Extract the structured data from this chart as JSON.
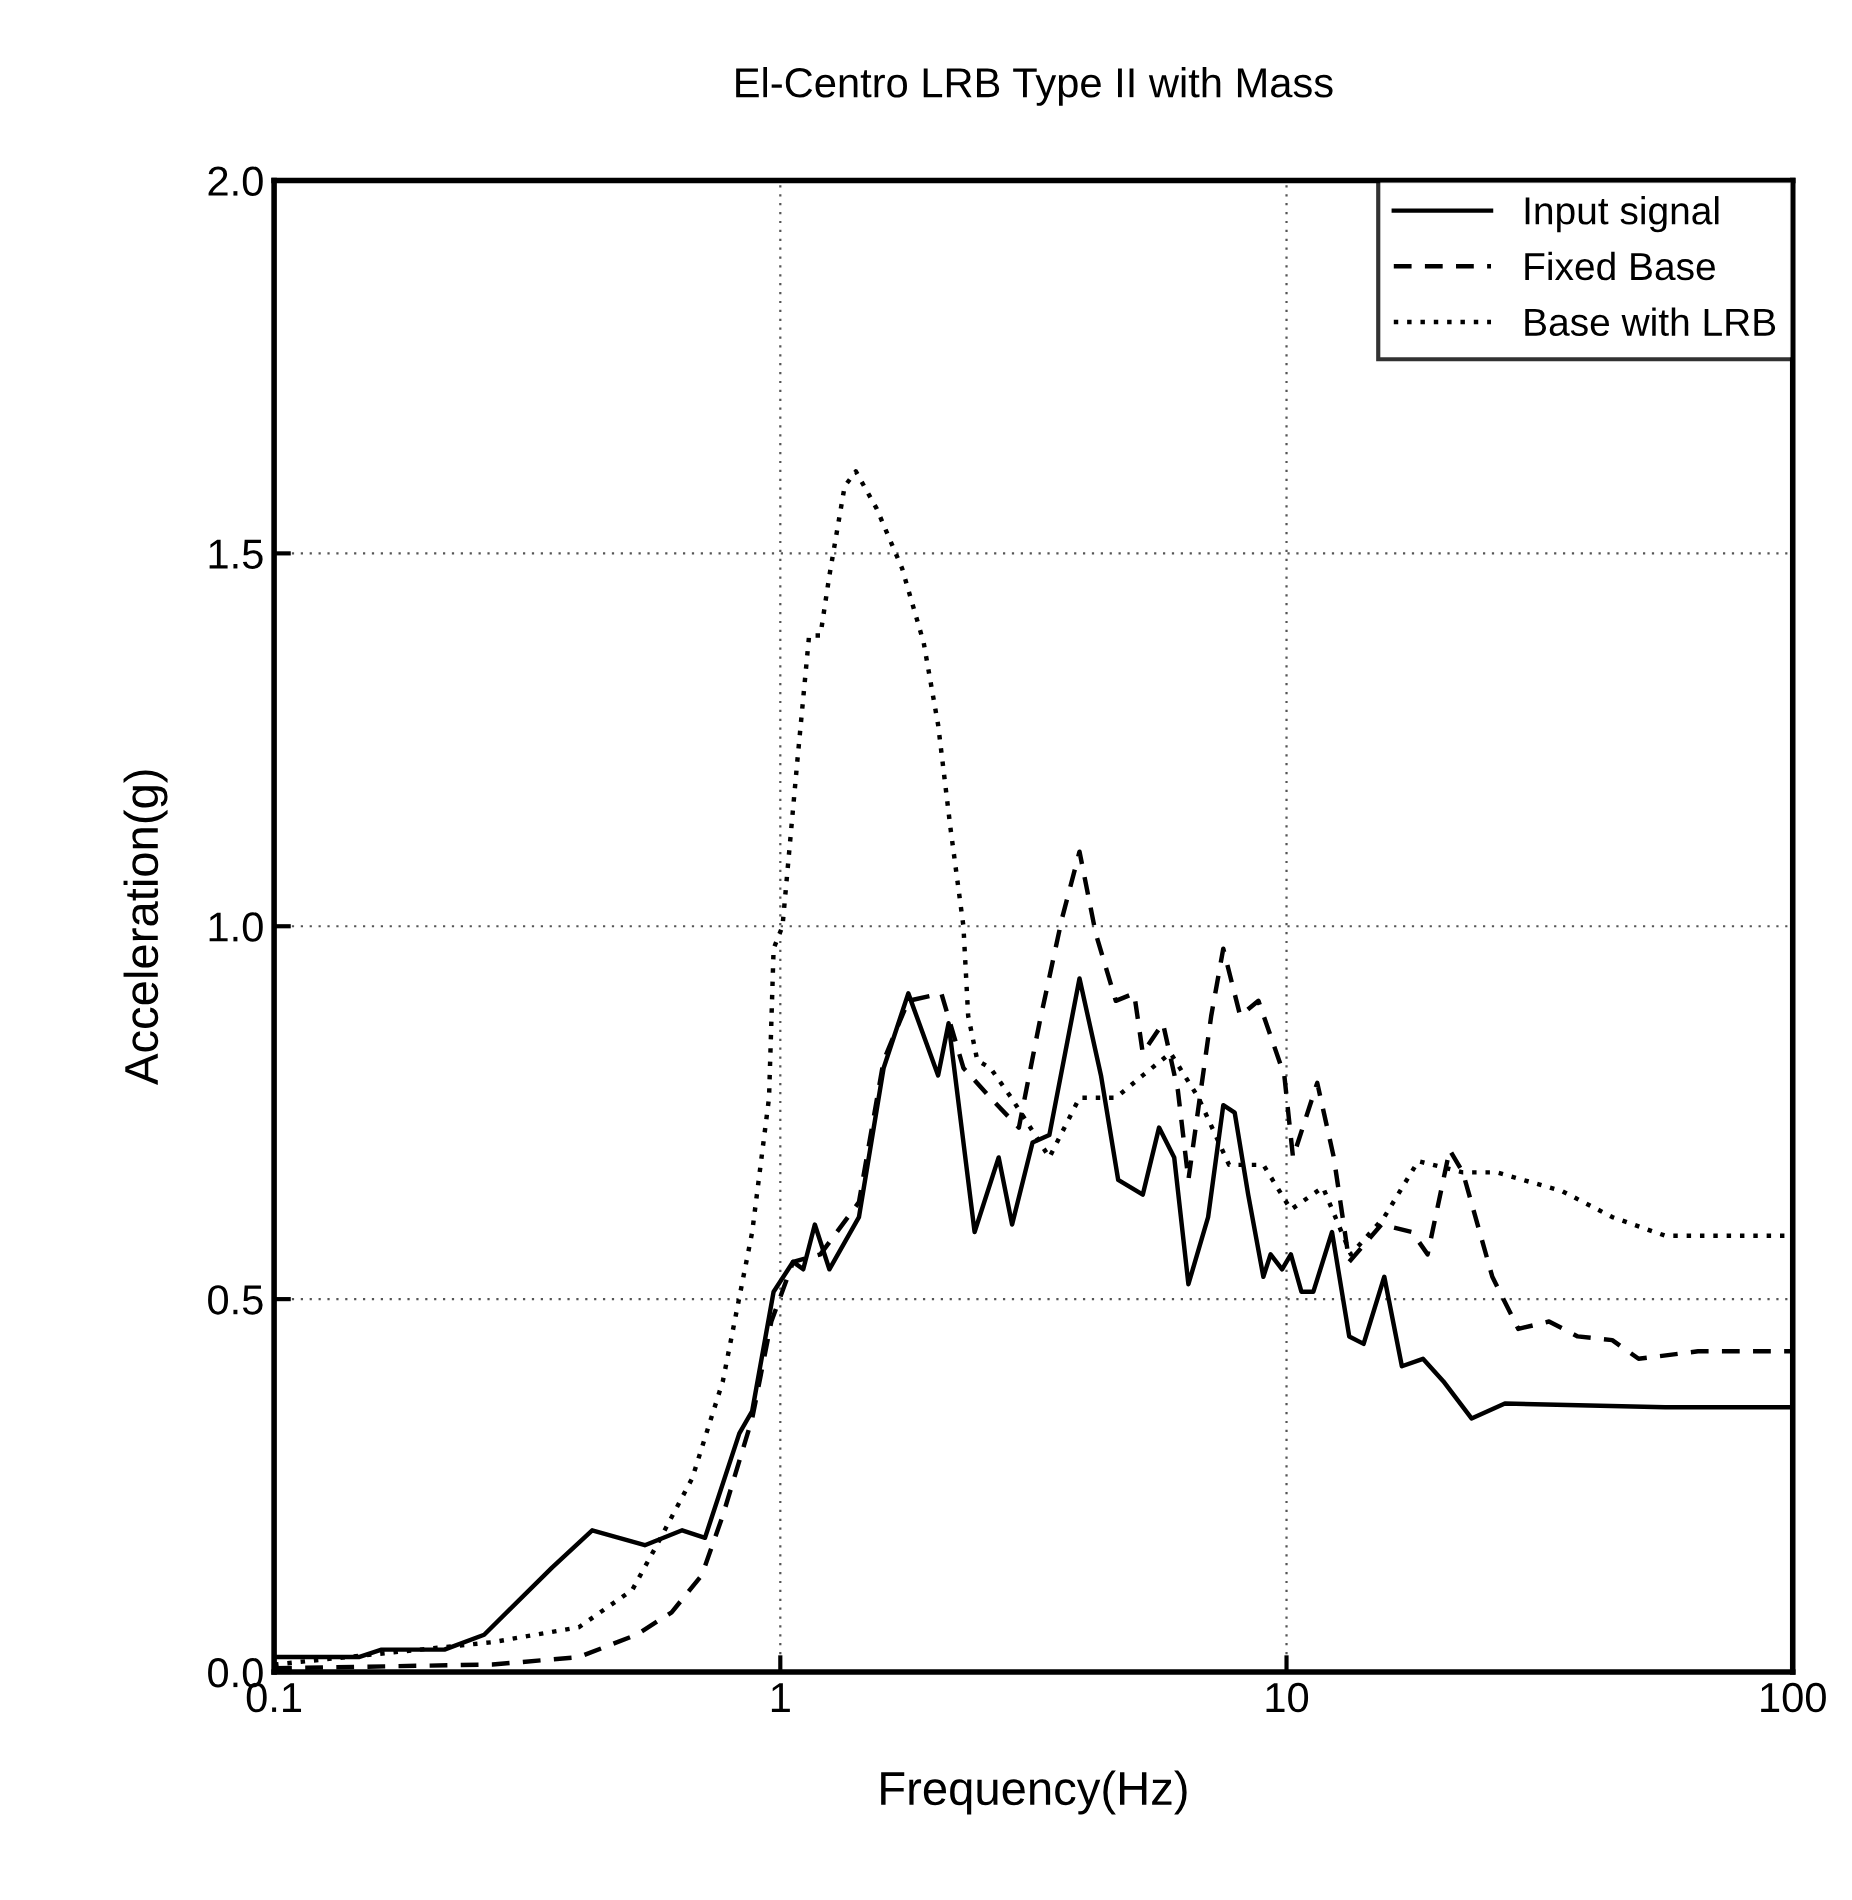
{
  "chart_data": {
    "type": "line",
    "title": "El-Centro LRB Type II with Mass",
    "xlabel": "Frequency(Hz)",
    "ylabel": "Acceleration(g)",
    "log": "x",
    "xlim": [
      0.1,
      100
    ],
    "ylim": [
      0,
      2
    ],
    "xticks": [
      {
        "value": 0.1,
        "label": "0.1"
      },
      {
        "value": 1,
        "label": "1"
      },
      {
        "value": 10,
        "label": "10"
      },
      {
        "value": 100,
        "label": "100"
      }
    ],
    "yticks": [
      {
        "value": 0,
        "label": "0.0"
      },
      {
        "value": 0.5,
        "label": "0.5"
      },
      {
        "value": 1,
        "label": "1.0"
      },
      {
        "value": 1.5,
        "label": "1.5"
      },
      {
        "value": 2,
        "label": "2.0"
      }
    ],
    "grid": true,
    "legend": "top right",
    "marker": "none",
    "series": [
      {
        "name": "Input signal",
        "color": "#000000",
        "line_style": "solid",
        "x": [
          0.1,
          0.147,
          0.163,
          0.217,
          0.26,
          0.354,
          0.425,
          0.54,
          0.64,
          0.71,
          0.83,
          0.88,
          0.97,
          1.06,
          1.11,
          1.17,
          1.25,
          1.43,
          1.6,
          1.79,
          2.05,
          2.15,
          2.42,
          2.7,
          2.87,
          3.15,
          3.4,
          3.9,
          4.3,
          4.65,
          5.2,
          5.6,
          6.0,
          6.4,
          7.0,
          7.5,
          7.9,
          8.4,
          9.0,
          9.3,
          9.8,
          10.2,
          10.7,
          11.3,
          12.3,
          13.3,
          14.2,
          15.6,
          16.9,
          18.6,
          20.4,
          23.2,
          27,
          56,
          100
        ],
        "values": [
          0.02,
          0.02,
          0.03,
          0.03,
          0.05,
          0.14,
          0.19,
          0.17,
          0.19,
          0.18,
          0.32,
          0.35,
          0.51,
          0.55,
          0.54,
          0.6,
          0.54,
          0.61,
          0.81,
          0.91,
          0.8,
          0.87,
          0.59,
          0.69,
          0.6,
          0.71,
          0.72,
          0.93,
          0.8,
          0.66,
          0.64,
          0.73,
          0.69,
          0.52,
          0.61,
          0.76,
          0.75,
          0.64,
          0.53,
          0.56,
          0.54,
          0.56,
          0.51,
          0.51,
          0.59,
          0.45,
          0.44,
          0.53,
          0.41,
          0.42,
          0.39,
          0.34,
          0.36,
          0.355,
          0.355
        ]
      },
      {
        "name": "Fixed Base",
        "color": "#000000",
        "line_style": "dashed",
        "x": [
          0.1,
          0.27,
          0.4,
          0.52,
          0.61,
          0.7,
          0.77,
          0.88,
          0.96,
          1.06,
          1.2,
          1.43,
          1.6,
          1.79,
          2.08,
          2.3,
          2.6,
          2.96,
          3.25,
          3.6,
          3.9,
          4.2,
          4.6,
          5.0,
          5.2,
          5.7,
          6.1,
          6.4,
          7.1,
          7.5,
          8.1,
          8.8,
          9.9,
          10.3,
          11.5,
          12.4,
          13.3,
          15.4,
          17.7,
          19,
          21,
          22.3,
          25.5,
          28.7,
          33,
          37.6,
          44,
          49.6,
          65,
          100
        ],
        "values": [
          0.005,
          0.01,
          0.02,
          0.05,
          0.08,
          0.13,
          0.21,
          0.34,
          0.47,
          0.55,
          0.56,
          0.63,
          0.82,
          0.9,
          0.91,
          0.81,
          0.77,
          0.73,
          0.87,
          1.01,
          1.1,
          0.99,
          0.9,
          0.91,
          0.83,
          0.87,
          0.78,
          0.66,
          0.88,
          0.97,
          0.88,
          0.9,
          0.8,
          0.69,
          0.79,
          0.69,
          0.55,
          0.6,
          0.59,
          0.56,
          0.7,
          0.67,
          0.53,
          0.46,
          0.47,
          0.45,
          0.445,
          0.42,
          0.43,
          0.43
        ]
      },
      {
        "name": "Base with LRB",
        "color": "#000000",
        "line_style": "dotted",
        "x": [
          0.1,
          0.27,
          0.4,
          0.51,
          0.57,
          0.67,
          0.77,
          0.88,
          0.95,
          0.97,
          1.01,
          1.08,
          1.14,
          1.2,
          1.25,
          1.34,
          1.41,
          1.55,
          1.74,
          1.92,
          2.05,
          2.17,
          2.3,
          2.35,
          2.45,
          2.6,
          2.86,
          3.4,
          3.9,
          4.6,
          5.2,
          5.9,
          6.7,
          7.7,
          9.0,
          10.2,
          11.8,
          13.4,
          15.6,
          18.2,
          22.3,
          26,
          35,
          44,
          56,
          100
        ],
        "values": [
          0.01,
          0.04,
          0.06,
          0.11,
          0.17,
          0.26,
          0.39,
          0.59,
          0.77,
          0.97,
          1.0,
          1.22,
          1.39,
          1.39,
          1.47,
          1.59,
          1.61,
          1.56,
          1.48,
          1.38,
          1.27,
          1.13,
          1.0,
          0.88,
          0.82,
          0.81,
          0.77,
          0.69,
          0.77,
          0.77,
          0.8,
          0.83,
          0.77,
          0.68,
          0.68,
          0.62,
          0.65,
          0.56,
          0.61,
          0.685,
          0.67,
          0.67,
          0.645,
          0.61,
          0.585,
          0.585
        ]
      }
    ]
  }
}
